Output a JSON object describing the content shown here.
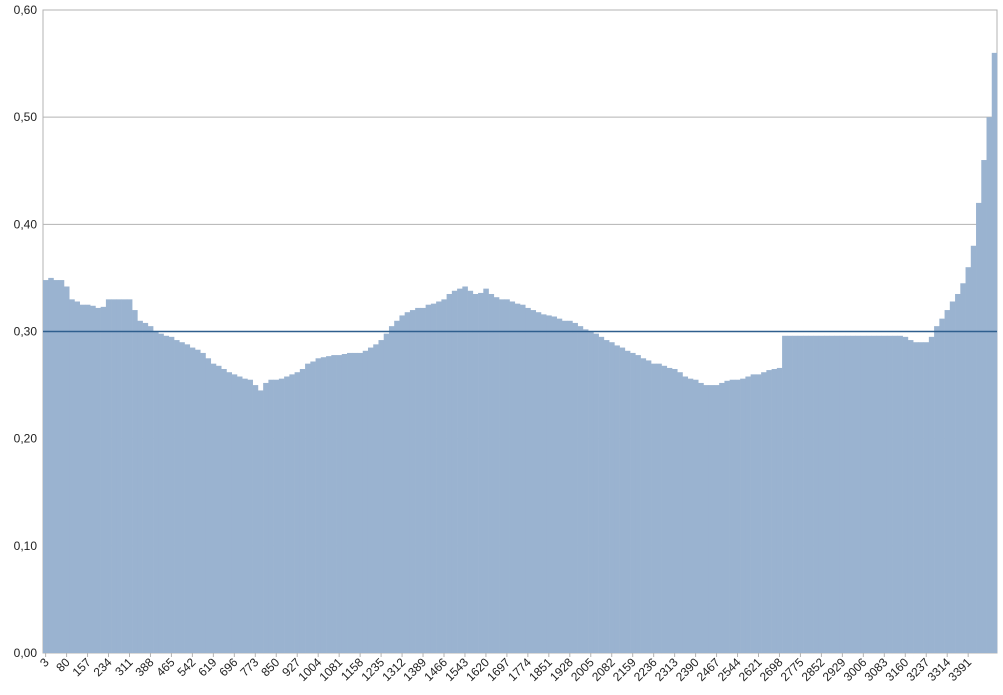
{
  "chart_data": {
    "type": "bar",
    "categories": [
      3,
      null,
      null,
      null,
      80,
      null,
      null,
      null,
      157,
      null,
      null,
      null,
      234,
      null,
      null,
      null,
      311,
      null,
      null,
      null,
      388,
      null,
      null,
      null,
      465,
      null,
      null,
      null,
      542,
      null,
      null,
      null,
      619,
      null,
      null,
      null,
      696,
      null,
      null,
      null,
      773,
      null,
      null,
      null,
      850,
      null,
      null,
      null,
      927,
      null,
      null,
      null,
      1004,
      null,
      null,
      null,
      1081,
      null,
      null,
      null,
      1158,
      null,
      null,
      null,
      1235,
      null,
      null,
      null,
      1312,
      null,
      null,
      null,
      1389,
      null,
      null,
      null,
      1466,
      null,
      null,
      null,
      1543,
      null,
      null,
      null,
      1620,
      null,
      null,
      null,
      1697,
      null,
      null,
      null,
      1774,
      null,
      null,
      null,
      1851,
      null,
      null,
      null,
      1928,
      null,
      null,
      null,
      2005,
      null,
      null,
      null,
      2082,
      null,
      null,
      null,
      2159,
      null,
      null,
      null,
      2236,
      null,
      null,
      null,
      2313,
      null,
      null,
      null,
      2390,
      null,
      null,
      null,
      2467,
      null,
      null,
      null,
      2544,
      null,
      null,
      null,
      2621,
      null,
      null,
      null,
      2698,
      null,
      null,
      null,
      2775,
      null,
      null,
      null,
      2852,
      null,
      null,
      null,
      2929,
      null,
      null,
      null,
      3006,
      null,
      null,
      null,
      3083,
      null,
      null,
      null,
      3160,
      null,
      null,
      null,
      3237,
      null,
      null,
      null,
      3314,
      null,
      null,
      null,
      3391,
      null,
      null,
      null,
      null,
      null
    ],
    "values": [
      0.348,
      0.35,
      0.348,
      0.348,
      0.342,
      0.33,
      0.328,
      0.325,
      0.325,
      0.324,
      0.322,
      0.323,
      0.33,
      0.33,
      0.33,
      0.33,
      0.33,
      0.32,
      0.31,
      0.308,
      0.305,
      0.3,
      0.298,
      0.296,
      0.295,
      0.292,
      0.29,
      0.288,
      0.285,
      0.283,
      0.28,
      0.275,
      0.27,
      0.268,
      0.265,
      0.262,
      0.26,
      0.258,
      0.256,
      0.255,
      0.25,
      0.245,
      0.252,
      0.255,
      0.255,
      0.256,
      0.258,
      0.26,
      0.262,
      0.265,
      0.27,
      0.272,
      0.275,
      0.276,
      0.277,
      0.278,
      0.278,
      0.279,
      0.28,
      0.28,
      0.28,
      0.282,
      0.285,
      0.288,
      0.292,
      0.298,
      0.305,
      0.31,
      0.315,
      0.318,
      0.32,
      0.322,
      0.322,
      0.325,
      0.326,
      0.328,
      0.33,
      0.335,
      0.338,
      0.34,
      0.342,
      0.338,
      0.335,
      0.336,
      0.34,
      0.335,
      0.332,
      0.33,
      0.33,
      0.328,
      0.326,
      0.325,
      0.322,
      0.32,
      0.318,
      0.316,
      0.315,
      0.314,
      0.312,
      0.31,
      0.31,
      0.308,
      0.305,
      0.302,
      0.3,
      0.298,
      0.295,
      0.292,
      0.29,
      0.287,
      0.285,
      0.282,
      0.28,
      0.278,
      0.275,
      0.273,
      0.27,
      0.27,
      0.268,
      0.266,
      0.265,
      0.262,
      0.258,
      0.256,
      0.255,
      0.252,
      0.25,
      0.25,
      0.25,
      0.252,
      0.254,
      0.255,
      0.255,
      0.256,
      0.258,
      0.26,
      0.26,
      0.262,
      0.264,
      0.265,
      0.266,
      0.296,
      0.296,
      0.296,
      0.296,
      0.296,
      0.296,
      0.296,
      0.296,
      0.296,
      0.296,
      0.296,
      0.296,
      0.296,
      0.296,
      0.296,
      0.296,
      0.296,
      0.296,
      0.296,
      0.296,
      0.296,
      0.296,
      0.296,
      0.295,
      0.292,
      0.29,
      0.29,
      0.29,
      0.295,
      0.305,
      0.312,
      0.32,
      0.328,
      0.335,
      0.345,
      0.36,
      0.38,
      0.42,
      0.46,
      0.5,
      0.56
    ],
    "color": "#9ab3d0",
    "reference_line": {
      "value": 0.3,
      "color": "#2f5f8e"
    },
    "ylim": [
      0,
      0.6
    ],
    "yticks": [
      {
        "value": 0,
        "label": "0,00"
      },
      {
        "value": 0.1,
        "label": "0,10"
      },
      {
        "value": 0.2,
        "label": "0,20"
      },
      {
        "value": 0.3,
        "label": "0,30"
      },
      {
        "value": 0.4,
        "label": "0,40"
      },
      {
        "value": 0.5,
        "label": "0,50"
      },
      {
        "value": 0.6,
        "label": "0,60"
      }
    ],
    "grid": true
  }
}
